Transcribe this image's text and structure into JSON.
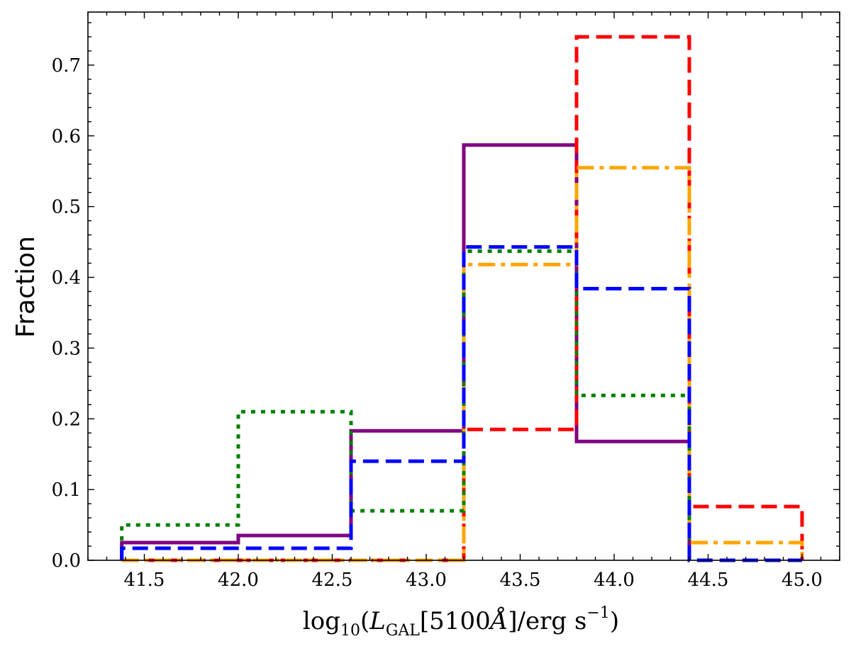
{
  "chart_data": {
    "type": "histogram-step",
    "xlabel": "log10(LGAL[5100Å]/erg s−1)",
    "ylabel": "Fraction",
    "xlim": [
      41.2,
      45.2
    ],
    "ylim": [
      0.0,
      0.775
    ],
    "x_ticks": [
      "41.5",
      "42.0",
      "42.5",
      "43.0",
      "43.5",
      "44.0",
      "44.5",
      "45.0"
    ],
    "y_ticks": [
      "0.0",
      "0.1",
      "0.2",
      "0.3",
      "0.4",
      "0.5",
      "0.6",
      "0.7"
    ],
    "bin_edges": [
      41.38,
      42.0,
      42.6,
      43.2,
      43.8,
      44.4,
      45.0
    ],
    "grid": false,
    "series": [
      {
        "color": "#800080",
        "linestyle": "solid",
        "edges": [
          41.38,
          42.0,
          42.6,
          43.2,
          43.8,
          44.4
        ],
        "values": [
          0.025,
          0.035,
          0.183,
          0.587,
          0.168
        ]
      },
      {
        "color": "#ff0000",
        "linestyle": "dashed",
        "edges": [
          41.38,
          42.0,
          42.6,
          43.2,
          43.8,
          44.4,
          45.0
        ],
        "values": [
          0.0,
          0.0,
          0.0,
          0.185,
          0.74,
          0.076
        ]
      },
      {
        "color": "#ffa500",
        "linestyle": "dashdot",
        "edges": [
          41.38,
          42.0,
          42.6,
          43.2,
          43.8,
          44.4,
          45.0
        ],
        "values": [
          0.0,
          0.0,
          0.0,
          0.418,
          0.555,
          0.025
        ]
      },
      {
        "color": "#008000",
        "linestyle": "dotted",
        "edges": [
          41.38,
          42.0,
          42.6,
          43.2,
          43.8,
          44.4
        ],
        "values": [
          0.05,
          0.21,
          0.07,
          0.437,
          0.233
        ]
      },
      {
        "color": "#0000ff",
        "linestyle": "dashed",
        "edges": [
          41.38,
          42.0,
          42.6,
          43.2,
          43.8,
          44.4,
          45.0
        ],
        "values": [
          0.017,
          0.017,
          0.14,
          0.443,
          0.384,
          0.0
        ]
      }
    ]
  }
}
